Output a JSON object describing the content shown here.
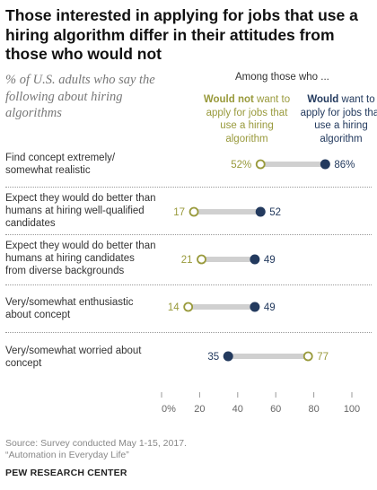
{
  "title": "Those interested in applying for jobs that use a hiring algorithm differ in their attitudes from those who would not",
  "subtitle": "% of U.S. adults who say the following about hiring algorithms",
  "among_label": "Among those who ...",
  "legend": {
    "not_want_bold": "Would not",
    "not_want_rest": " want to apply for jobs that use a hiring algorithm",
    "want_bold": "Would",
    "want_rest": " want to apply for jobs that use a hiring algorithm"
  },
  "colors": {
    "not_want": "#999a3c",
    "want": "#233a5e",
    "connector": "#d0d0d0"
  },
  "rows": [
    {
      "label": "Find concept extremely/ somewhat realistic"
    },
    {
      "label": "Expect they would do better than humans at hiring well-qualified candidates"
    },
    {
      "label": "Expect they would do better than humans at hiring candidates from diverse backgrounds"
    },
    {
      "label": "Very/somewhat enthusiastic about concept"
    },
    {
      "label": "Very/somewhat worried about concept"
    }
  ],
  "chart_data": {
    "type": "dot",
    "categories": [
      "Find concept extremely/ somewhat realistic",
      "Expect they would do better than humans at hiring well-qualified candidates",
      "Expect they would do better than humans at hiring candidates from diverse backgrounds",
      "Very/somewhat enthusiastic about concept",
      "Very/somewhat worried about concept"
    ],
    "series": [
      {
        "name": "Would not want to apply for jobs that use a hiring algorithm",
        "values": [
          52,
          17,
          21,
          14,
          77
        ],
        "labels": [
          "52%",
          "17",
          "21",
          "14",
          "77"
        ]
      },
      {
        "name": "Would want to apply for jobs that use a hiring algorithm",
        "values": [
          86,
          52,
          49,
          49,
          35
        ],
        "labels": [
          "86%",
          "52",
          "49",
          "49",
          "35"
        ]
      }
    ],
    "xlim": [
      0,
      100
    ],
    "xticks": [
      0,
      20,
      40,
      60,
      80,
      100
    ],
    "xtick_labels": [
      "0%",
      "20",
      "40",
      "60",
      "80",
      "100"
    ]
  },
  "source_line1": "Source: Survey conducted May 1-15, 2017.",
  "source_line2": "“Automation in Everyday Life”",
  "org": "PEW RESEARCH CENTER"
}
